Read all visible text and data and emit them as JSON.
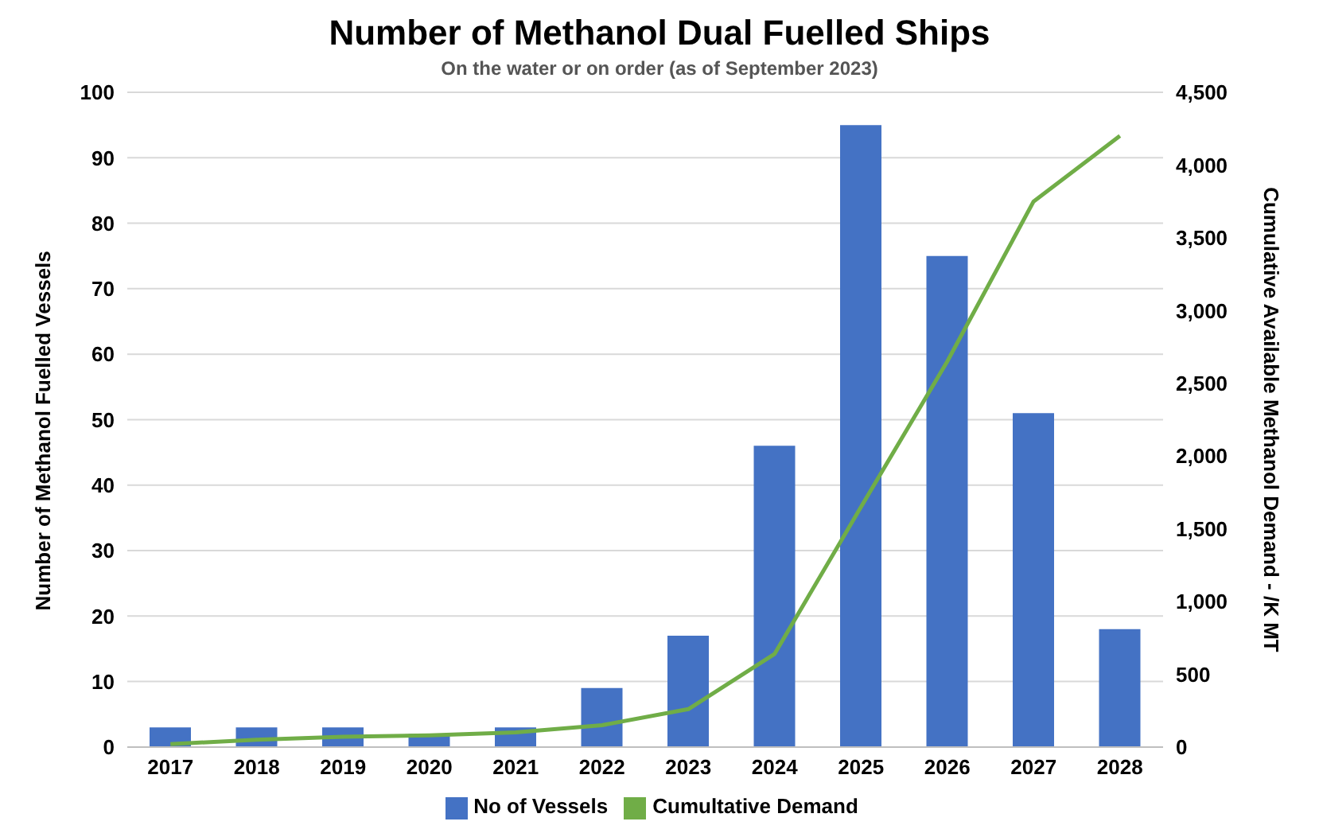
{
  "chart_data": {
    "type": "bar",
    "title": "Number of Methanol Dual Fuelled Ships",
    "subtitle": "On the water or on order (as of September 2023)",
    "ylabel": "Number of Methanol Fuelled Vessels",
    "y2label": "Cumulative Available Methanol Demand - /K MT",
    "categories": [
      "2017",
      "2018",
      "2019",
      "2020",
      "2021",
      "2022",
      "2023",
      "2024",
      "2025",
      "2026",
      "2027",
      "2028"
    ],
    "series": [
      {
        "name": "No of Vessels",
        "color": "#4472c4",
        "values": [
          3,
          3,
          3,
          2,
          3,
          9,
          17,
          46,
          95,
          75,
          51,
          18
        ]
      },
      {
        "name": "Cumultative Demand",
        "type": "line",
        "axis": "y2",
        "color": "#70ad47",
        "values": [
          20,
          50,
          70,
          80,
          100,
          150,
          260,
          640,
          1650,
          2650,
          3750,
          4200
        ]
      }
    ],
    "ylim": [
      0,
      100
    ],
    "yticks": [
      0,
      10,
      20,
      30,
      40,
      50,
      60,
      70,
      80,
      90,
      100
    ],
    "y2lim": [
      0,
      4500
    ],
    "y2ticks": [
      0,
      500,
      {
        "value": 1000,
        "label": "1,000"
      },
      {
        "value": 1500,
        "label": "1,500"
      },
      {
        "value": 2000,
        "label": "2,000"
      },
      {
        "value": 2500,
        "label": "2,500"
      },
      {
        "value": 3000,
        "label": "3,000"
      },
      {
        "value": 3500,
        "label": "3,500"
      },
      {
        "value": 4000,
        "label": "4,000"
      },
      {
        "value": 4500,
        "label": "4,500"
      }
    ],
    "grid": "y",
    "legend": "bottom",
    "marker": "none"
  }
}
